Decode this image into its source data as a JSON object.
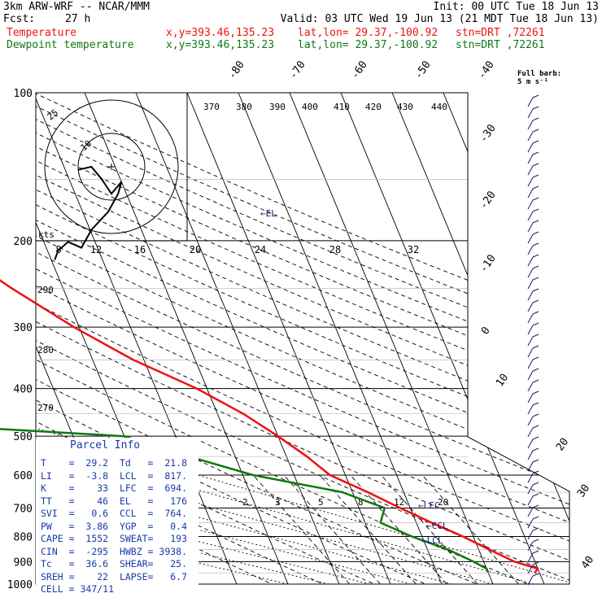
{
  "header": {
    "model": "3km ARW-WRF -- NCAR/MMM",
    "init": "Init: 00 UTC Tue 18 Jun 13",
    "fcst_label": "Fcst:",
    "fcst_value": "27 h",
    "valid": "Valid: 03 UTC Wed 19 Jun 13 (21 MDT Tue 18 Jun 13)",
    "temp_label": "Temperature",
    "dew_label": "Dewpoint temperature",
    "xy": "x,y=393.46,135.23",
    "latlon": "lat,lon= 29.37,-100.92",
    "stn": "stn=DRT ,72261"
  },
  "colors": {
    "temperature": "#ee1111",
    "dewpoint": "#117711",
    "wind": "#1a1a6e",
    "info": "#1a3aa8",
    "grid": "#000000"
  },
  "chart_data": {
    "type": "line",
    "title": "Skew-T log-P sounding",
    "pressure_levels": [
      {
        "p": 100,
        "label": "100"
      },
      {
        "p": 200,
        "label": "200"
      },
      {
        "p": 300,
        "label": "300"
      },
      {
        "p": 400,
        "label": "400"
      },
      {
        "p": 500,
        "label": "500"
      },
      {
        "p": 600,
        "label": "600"
      },
      {
        "p": 700,
        "label": "700"
      },
      {
        "p": 800,
        "label": "800"
      },
      {
        "p": 900,
        "label": "900"
      },
      {
        "p": 1000,
        "label": "1000"
      }
    ],
    "isotherm_labels": [
      "-80",
      "-70",
      "-60",
      "-50",
      "-40",
      "-30",
      "-20",
      "-10",
      "0",
      "10",
      "20",
      "30",
      "40"
    ],
    "theta_labels": [
      "370",
      "380",
      "390",
      "400",
      "410",
      "420",
      "430",
      "440",
      "290",
      "280",
      "270"
    ],
    "hodograph_speed_labels": [
      "8",
      "12",
      "16",
      "20",
      "24",
      "28",
      "32"
    ],
    "hodograph_ring_labels": [
      "25",
      "10"
    ],
    "hodograph_units": "kts",
    "mixing_ratio_labels": [
      "2",
      "3",
      "5",
      "8",
      "12",
      "20"
    ],
    "level_markers": [
      "EL",
      "LFC",
      "CCL",
      "LCL"
    ],
    "wind_barb_label": "Full barb: 5 m s⁻¹",
    "series": [
      {
        "name": "Temperature",
        "points": [
          [
            100,
            -66
          ],
          [
            120,
            -70
          ],
          [
            150,
            -71
          ],
          [
            200,
            -60
          ],
          [
            250,
            -50
          ],
          [
            300,
            -41
          ],
          [
            350,
            -32
          ],
          [
            400,
            -22
          ],
          [
            450,
            -15
          ],
          [
            500,
            -10
          ],
          [
            550,
            -6
          ],
          [
            600,
            -3
          ],
          [
            650,
            3
          ],
          [
            700,
            8
          ],
          [
            750,
            13
          ],
          [
            800,
            18
          ],
          [
            850,
            22
          ],
          [
            900,
            26
          ],
          [
            930,
            30
          ],
          [
            950,
            29
          ]
        ]
      },
      {
        "name": "Dewpoint temperature",
        "points": [
          [
            100,
            -97
          ],
          [
            120,
            -104
          ],
          [
            150,
            -109
          ],
          [
            200,
            -107
          ],
          [
            250,
            -101
          ],
          [
            300,
            -97
          ],
          [
            350,
            -89
          ],
          [
            400,
            -88
          ],
          [
            430,
            -94
          ],
          [
            470,
            -84
          ],
          [
            500,
            -40
          ],
          [
            550,
            -29
          ],
          [
            600,
            -18
          ],
          [
            650,
            -2
          ],
          [
            700,
            5
          ],
          [
            750,
            3
          ],
          [
            800,
            8
          ],
          [
            850,
            14
          ],
          [
            900,
            18
          ],
          [
            930,
            20
          ],
          [
            945,
            20
          ]
        ]
      }
    ],
    "hodograph_points": [
      [
        -10,
        1
      ],
      [
        -6,
        0
      ],
      [
        -3,
        4
      ],
      [
        0,
        9
      ],
      [
        3,
        5
      ],
      [
        2,
        9
      ],
      [
        -1,
        15
      ],
      [
        -6,
        21
      ],
      [
        -9,
        27
      ],
      [
        -13,
        25
      ],
      [
        -16,
        28
      ],
      [
        -17,
        31
      ]
    ]
  },
  "parcel_info": {
    "title": "Parcel Info",
    "rows": [
      {
        "k1": "T",
        "v1": "29.2",
        "k2": "Td",
        "v2": "21.8"
      },
      {
        "k1": "LI",
        "v1": "-3.8",
        "k2": "LCL",
        "v2": "817."
      },
      {
        "k1": "K",
        "v1": "33",
        "k2": "LFC",
        "v2": "694."
      },
      {
        "k1": "TT",
        "v1": "46",
        "k2": "EL",
        "v2": "176"
      },
      {
        "k1": "SVI",
        "v1": "0.6",
        "k2": "CCL",
        "v2": "764."
      },
      {
        "k1": "PW",
        "v1": "3.86",
        "k2": "YGP",
        "v2": "0.4"
      },
      {
        "k1": "CAPE",
        "v1": "1552",
        "k2": "SWEAT",
        "v2": "193"
      },
      {
        "k1": "CIN",
        "v1": "-295",
        "k2": "HWBZ",
        "v2": "3938."
      },
      {
        "k1": "Tc",
        "v1": "36.6",
        "k2": "SHEAR",
        "v2": "25."
      },
      {
        "k1": "SREH",
        "v1": "22",
        "k2": "LAPSE",
        "v2": "6.7"
      }
    ],
    "cell_label": "CELL",
    "cell_value": "347/11"
  }
}
